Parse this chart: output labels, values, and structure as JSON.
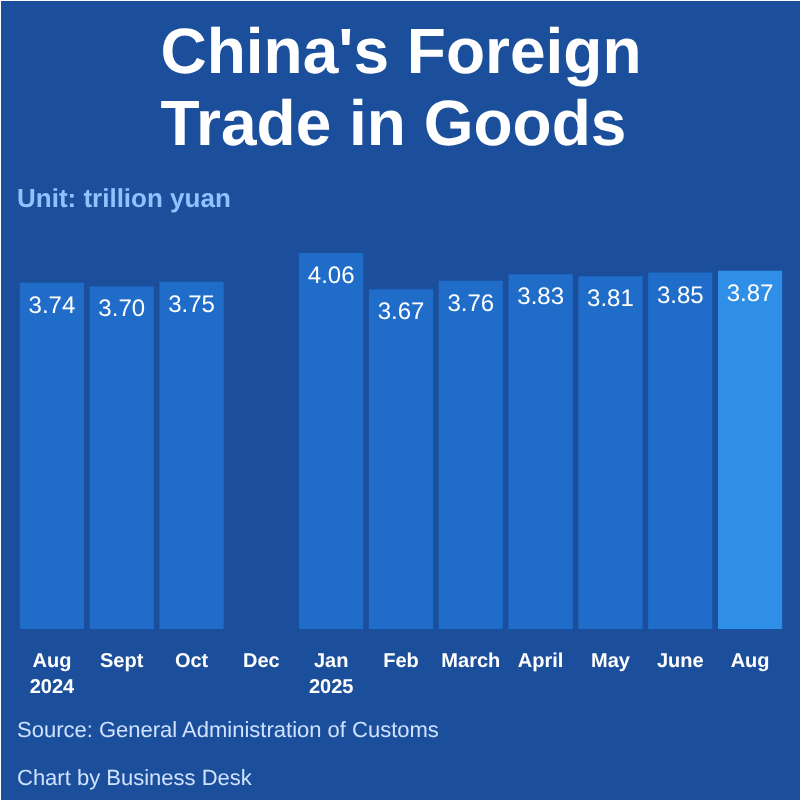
{
  "chart_data": {
    "type": "bar",
    "title": "China's Foreign Trade in Goods",
    "subtitle": "Unit: trillion yuan",
    "categories": [
      "Aug 2024",
      "Sept",
      "Oct",
      "Dec",
      "Jan 2025",
      "Feb",
      "March",
      "April",
      "May",
      "June",
      "Aug"
    ],
    "values": [
      3.74,
      3.7,
      3.75,
      null,
      4.06,
      3.67,
      3.76,
      3.83,
      3.81,
      3.85,
      3.87
    ],
    "colors": [
      "#1f6cc9",
      "#1f6cc9",
      "#1f6cc9",
      "#1f6cc9",
      "#1f6cc9",
      "#1f6cc9",
      "#1f6cc9",
      "#1f6cc9",
      "#1f6cc9",
      "#1f6cc9",
      "#2f8ee6"
    ],
    "value_labels": [
      "3.74",
      "3.70",
      "3.75",
      null,
      "4.06",
      "3.67",
      "3.76",
      "3.83",
      "3.81",
      "3.85",
      "3.87"
    ],
    "grid": false,
    "annotations": [
      "Source: General Administration of Customs",
      "Chart by Business Desk"
    ]
  }
}
